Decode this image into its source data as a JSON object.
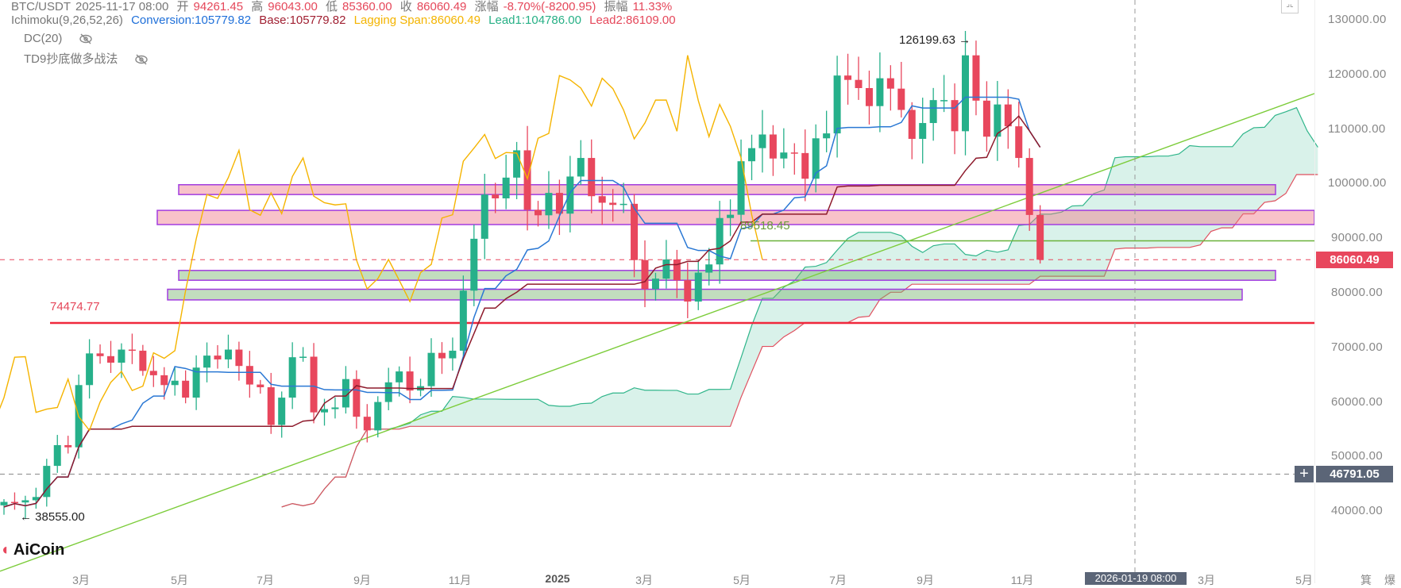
{
  "header": {
    "symbol": "BTC/USDT",
    "time": "2025-11-17 08:00",
    "open_label": "开",
    "open": "94261.45",
    "high_label": "高",
    "high": "96043.00",
    "low_label": "低",
    "low": "85360.00",
    "close_label": "收",
    "close": "86060.49",
    "change_label": "涨幅",
    "change": "-8.70%(-8200.95)",
    "amp_label": "振幅",
    "amp": "11.33%"
  },
  "indicators": {
    "ichimoku": "Ichimoku(9,26,52,26)",
    "conversion": "Conversion:105779.82",
    "base": "Base:105779.82",
    "lagging": "Lagging Span:86060.49",
    "lead1": "Lead1:104786.00",
    "lead2": "Lead2:86109.00",
    "dc": "DC(20)",
    "td9": "TD9抄底做多战法"
  },
  "colors": {
    "up": "#26b08a",
    "down": "#e8475d",
    "conversion": "#2a78d4",
    "base": "#8e1b2c",
    "lagging": "#f5b400",
    "lead1": "#2fb58a",
    "lead2": "#e0505f",
    "trend": "#7ccc3a"
  },
  "chart_data": {
    "type": "candlestick",
    "title": "BTC/USDT weekly",
    "interval": "1W",
    "first_week": "2024-01-08",
    "closes": [
      41700,
      41600,
      42000,
      42600,
      48300,
      52100,
      51700,
      63100,
      68900,
      68400,
      67200,
      69600,
      69400,
      65700,
      64900,
      63100,
      63900,
      60800,
      66300,
      68500,
      67800,
      69600,
      66600,
      63200,
      62700,
      55800,
      60800,
      68200,
      68300,
      58100,
      58700,
      59000,
      64200,
      57300,
      54800,
      60000,
      63600,
      65600,
      62100,
      62900,
      69000,
      68000,
      69400,
      80400,
      89900,
      98000,
      97300,
      101100,
      106100,
      95200,
      94200,
      98300,
      94500,
      101300,
      104700,
      97700,
      96500,
      96100,
      96300,
      86000,
      80700,
      82600,
      86100,
      82300,
      78400,
      83700,
      85200,
      93700,
      94300,
      104100,
      106500,
      109000,
      104600,
      105700,
      105600,
      100900,
      108300,
      109200,
      119800,
      119000,
      117500,
      114200,
      119300,
      117400,
      113500,
      108200,
      111100,
      115300,
      115300,
      109600,
      123500,
      115200,
      108600,
      114500,
      110500,
      104700,
      94261.45,
      86060.49
    ],
    "last_candle": {
      "o": 94261.45,
      "h": 96043.0,
      "l": 85360.0,
      "c": 86060.49
    },
    "marked_high": {
      "index": 91,
      "value": 126199.63,
      "label": "126199.63"
    },
    "marked_low": {
      "index": 2,
      "value": 38555.0,
      "label": "38555.00"
    },
    "ichimoku_params": [
      9,
      26,
      52,
      26
    ],
    "y_axis": {
      "min": 30000,
      "max": 130000,
      "ticks": [
        "130000.00",
        "120000.00",
        "110000.00",
        "100000.00",
        "90000.00",
        "80000.00",
        "70000.00",
        "60000.00",
        "50000.00",
        "40000.00"
      ]
    },
    "x_axis_ticks": [
      "3月",
      "5月",
      "7月",
      "9月",
      "11月",
      "2025",
      "3月",
      "5月",
      "7月",
      "9月",
      "11月",
      "3月",
      "5月"
    ],
    "zones": [
      {
        "type": "resistance",
        "from": 98000,
        "to": 99800
      },
      {
        "type": "resistance",
        "from": 92500,
        "to": 95100
      },
      {
        "type": "support",
        "from": 82300,
        "to": 84100
      },
      {
        "type": "support",
        "from": 78700,
        "to": 80650
      }
    ],
    "levels": [
      {
        "value": 74474.77,
        "label": "74474.77"
      },
      {
        "value": 89518.45,
        "label": "89518.45"
      }
    ],
    "trendline": {
      "from_price": 29000,
      "to_price": 116500
    },
    "last_price": "86060.49",
    "crosshair": {
      "price": "46791.05",
      "time": "2026-01-19 08:00"
    }
  },
  "axis_extra": [
    "箕",
    "爆"
  ],
  "logo": "AiCoin"
}
